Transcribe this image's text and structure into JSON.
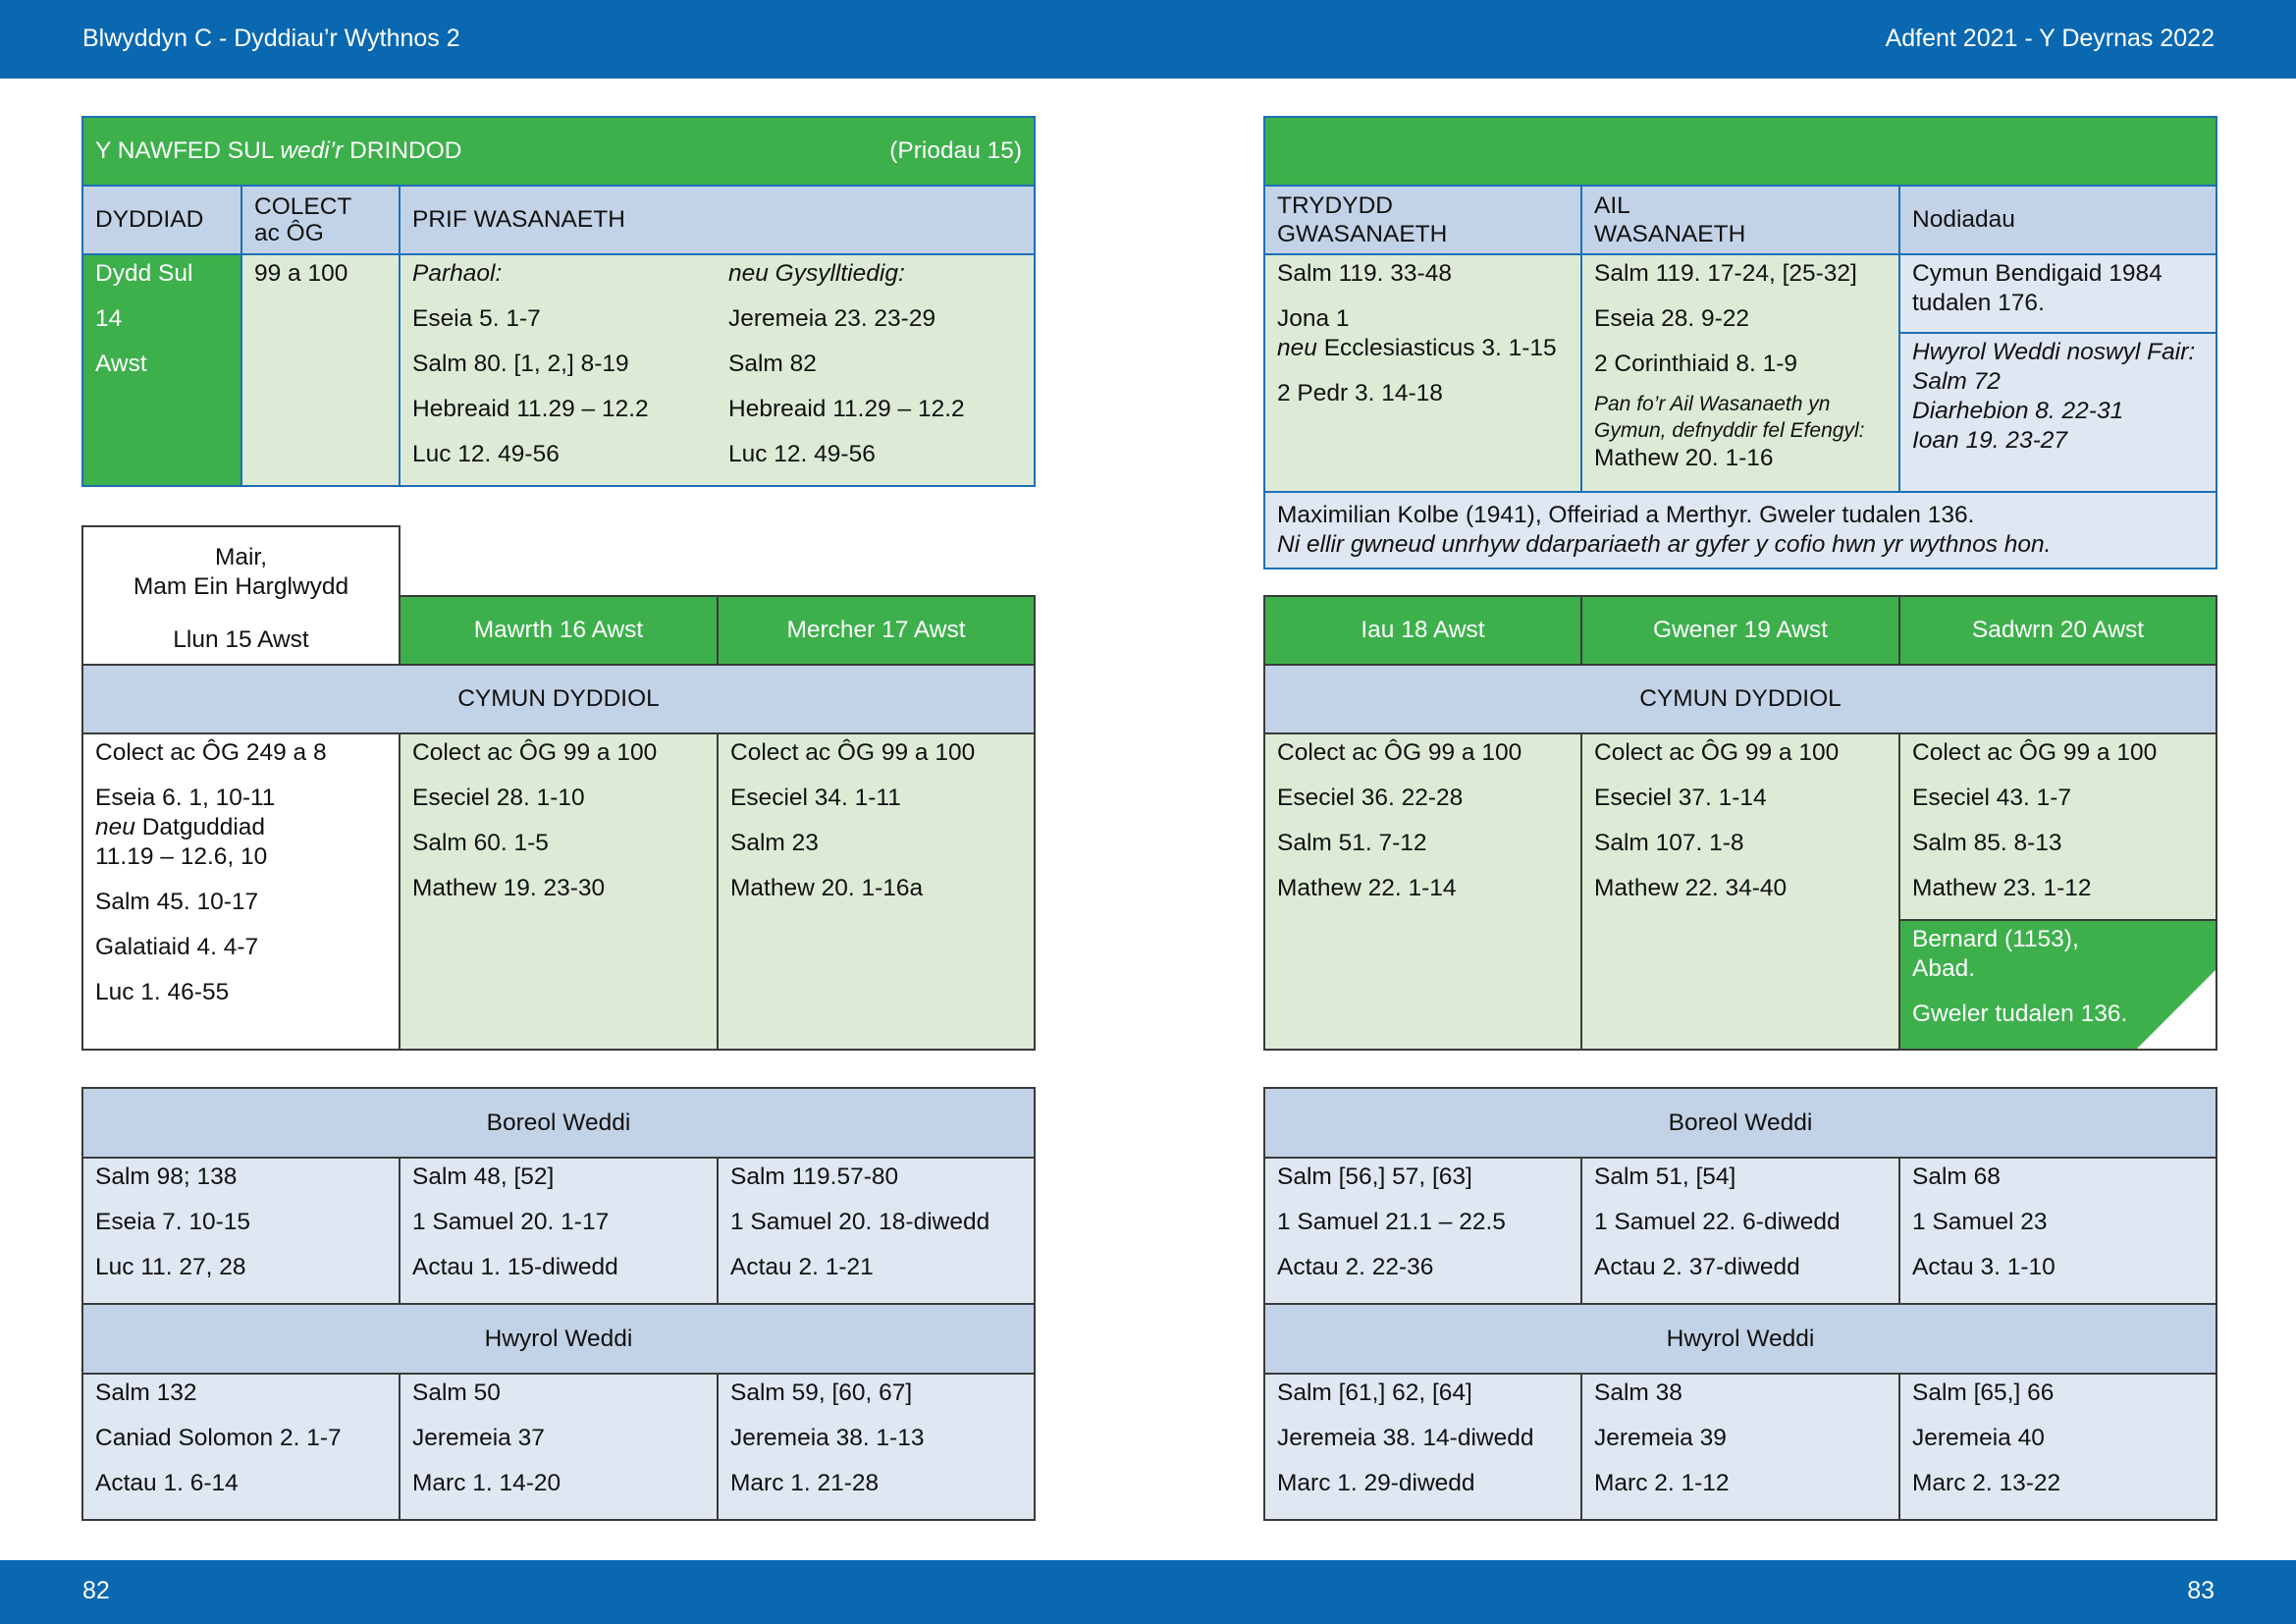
{
  "header": {
    "left": "Blwyddyn  C - Dyddiau’r Wythnos 2",
    "right": "Adfent 2021 - Y Deyrnas 2022"
  },
  "footer": {
    "left_page": "82",
    "right_page": "83"
  },
  "sunday": {
    "title_a": "Y NAWFED SUL ",
    "title_b": "wedi’r",
    "title_c": " DRINDOD",
    "note": "(Priodau 15)",
    "col_date": "DYDDIAD",
    "col_collect_1": "COLECT",
    "col_collect_2": "ac ÔG",
    "col_main": "PRIF WASANAETH",
    "date": [
      "Dydd Sul",
      "14",
      "Awst"
    ],
    "collect": "99 a 100",
    "cont_label": "Parhaol:",
    "rel_label": "neu Gysylltiedig:",
    "cont": [
      "Eseia 5. 1-7",
      "Salm 80. [1, 2,] 8-19",
      "Hebreaid 11.29 – 12.2",
      "Luc 12. 49-56"
    ],
    "rel": [
      "Jeremeia 23. 23-29",
      "Salm 82",
      "Hebreaid 11.29 – 12.2",
      "Luc 12. 49-56"
    ],
    "col_third_1": "TRYDYDD",
    "col_third_2": "GWASANAETH",
    "col_second_1": "AIL",
    "col_second_2": "WASANAETH",
    "col_notes": "Nodiadau",
    "third_1": "Salm 119. 33-48",
    "third_2": "Jona 1",
    "third_neu": "neu",
    "third_3": " Ecclesiasticus 3. 1-15",
    "third_4": "2 Pedr 3. 14-18",
    "second": [
      "Salm 119. 17-24, [25-32]",
      "Eseia 28. 9-22",
      "2 Corinthiaid 8. 1-9"
    ],
    "second_note": [
      "Pan fo’r Ail Wasanaeth yn",
      "Gymun, defnyddir fel Efengyl:"
    ],
    "second_last": "Mathew 20. 1-16",
    "notes_1": [
      "Cymun Bendigaid 1984",
      "tudalen 176."
    ],
    "notes_2": [
      "Hwyrol Weddi noswyl Fair:",
      "Salm 72",
      "Diarhebion 8. 22-31",
      "Ioan 19. 23-27"
    ],
    "kolbe_1": "Maximilian Kolbe (1941), Offeiriad a Merthyr. Gweler tudalen 136.",
    "kolbe_2": "Ni ellir gwneud unrhyw ddarpariaeth ar gyfer y cofio hwn yr wythnos hon."
  },
  "week_left": {
    "mair_1": "Mair,",
    "mair_2": "Mam Ein Harglwydd",
    "days": [
      "Llun 15 Awst",
      "Mawrth 16 Awst",
      "Mercher 17 Awst"
    ],
    "cymun": "CYMUN DYDDIOL",
    "mon": {
      "c1": "Colect ac ÔG 249 a 8",
      "c2": "Eseia 6. 1, 10-11",
      "c3_neu": "neu",
      "c3": " Datguddiad",
      "c4": "11.19 – 12.6, 10",
      "c5": "Salm 45. 10-17",
      "c6": "Galatiaid 4. 4-7",
      "c7": "Luc 1. 46-55"
    },
    "tue": [
      "Colect ac ÔG 99 a 100",
      "Eseciel 28. 1-10",
      "Salm 60. 1-5",
      "Mathew 19. 23-30"
    ],
    "wed": [
      "Colect ac ÔG 99 a 100",
      "Eseciel 34. 1-11",
      "Salm 23",
      "Mathew 20. 1-16a"
    ],
    "morning": "Boreol Weddi",
    "m": [
      [
        "Salm 98; 138",
        "Eseia 7. 10-15",
        "Luc 11. 27, 28"
      ],
      [
        "Salm 48, [52]",
        "1 Samuel 20. 1-17",
        "Actau 1. 15-diwedd"
      ],
      [
        "Salm 119.57-80",
        "1 Samuel 20. 18-diwedd",
        "Actau 2. 1-21"
      ]
    ],
    "evening": "Hwyrol Weddi",
    "e": [
      [
        "Salm 132",
        "Caniad Solomon 2. 1-7",
        "Actau 1. 6-14"
      ],
      [
        "Salm 50",
        "Jeremeia 37",
        "Marc 1. 14-20"
      ],
      [
        "Salm 59, [60, 67]",
        "Jeremeia 38. 1-13",
        "Marc 1. 21-28"
      ]
    ]
  },
  "week_right": {
    "days": [
      "Iau 18 Awst",
      "Gwener 19 Awst",
      "Sadwrn 20 Awst"
    ],
    "cymun": "CYMUN DYDDIOL",
    "d": [
      [
        "Colect ac ÔG 99 a 100",
        "Eseciel 36. 22-28",
        "Salm 51. 7-12",
        "Mathew 22. 1-14"
      ],
      [
        "Colect ac ÔG 99 a 100",
        "Eseciel 37. 1-14",
        "Salm 107. 1-8",
        "Mathew 22. 34-40"
      ],
      [
        "Colect ac ÔG 99 a 100",
        "Eseciel 43. 1-7",
        "Salm 85. 8-13",
        "Mathew 23. 1-12"
      ]
    ],
    "bernard": [
      "Bernard (1153),",
      "Abad.",
      "Gweler tudalen 136."
    ],
    "morning": "Boreol Weddi",
    "m": [
      [
        "Salm [56,] 57, [63]",
        "1 Samuel 21.1 – 22.5",
        "Actau 2. 22-36"
      ],
      [
        "Salm 51, [54]",
        "1 Samuel 22. 6-diwedd",
        "Actau 2. 37-diwedd"
      ],
      [
        "Salm 68",
        "1 Samuel 23",
        "Actau 3. 1-10"
      ]
    ],
    "evening": "Hwyrol Weddi",
    "e": [
      [
        "Salm [61,] 62, [64]",
        "Jeremeia 38. 14-diwedd",
        "Marc 1. 29-diwedd"
      ],
      [
        "Salm 38",
        "Jeremeia 39",
        "Marc 2. 1-12"
      ],
      [
        "Salm [65,] 66",
        "Jeremeia 40",
        "Marc 2. 13-22"
      ]
    ]
  },
  "colors": {
    "band": "#0a68b0",
    "green": "#3db04c",
    "light_green": "#ddebd6",
    "blue_header": "#c3d3e7",
    "light_blue": "#dfe7f2"
  }
}
